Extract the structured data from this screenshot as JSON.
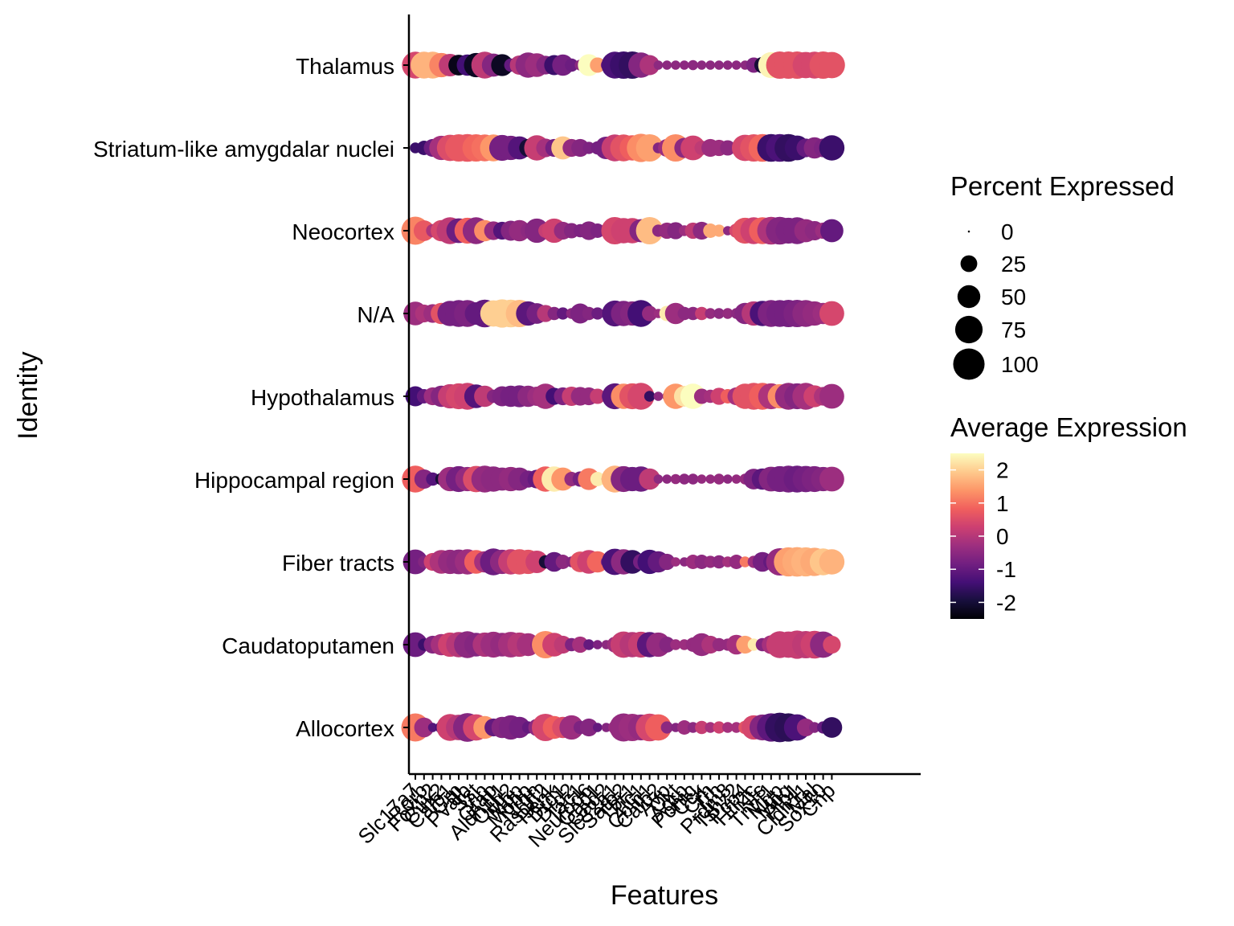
{
  "chart_data": {
    "type": "dotplot",
    "xlabel": "Features",
    "ylabel": "Identity",
    "identities": [
      "Allocortex",
      "Caudatoputamen",
      "Fiber tracts",
      "Hippocampal region",
      "Hypothalamus",
      "N/A",
      "Neocortex",
      "Striatum-like amygdalar nuclei",
      "Thalamus"
    ],
    "features_labeled": [
      "Slc17a7",
      "Rorb",
      "Foxp2",
      "Cux2",
      "Calb1",
      "Grp",
      "Pvalb",
      "Sst",
      "Vip",
      "Gfap",
      "Aldh1l1",
      "Olig2",
      "Mbp",
      "Mobp",
      "Nrgn",
      "Rasgrf2",
      "Penk",
      "Drd1",
      "Drd2",
      "Tac1",
      "Neurod6",
      "Gad1",
      "Gad2",
      "Slc32a1",
      "Satb2",
      "Tbr1",
      "Zic1",
      "Cbln1",
      "Calb2",
      "Avp",
      "Oxt",
      "Agrp",
      "Pomc",
      "Cck",
      "Crh",
      "Trh",
      "Prdm8",
      "Tshz2",
      "Pcp4",
      "Htr2c",
      "Nts",
      "Tnnt1",
      "Mgp",
      "Mog",
      "Plp1",
      "Cldn11",
      "Mal",
      "Sox10",
      "Cnp"
    ],
    "n_features": 49,
    "dots": {
      "Allocortex": {
        "pct": [
          55,
          25,
          4,
          8,
          50,
          45,
          58,
          48,
          35,
          20,
          30,
          40,
          30,
          8,
          18,
          52,
          35,
          30,
          40,
          10,
          20,
          4,
          4,
          10,
          55,
          52,
          46,
          54,
          48,
          8,
          4,
          12,
          6,
          10,
          6,
          8,
          6,
          6,
          10,
          40,
          46,
          56,
          62,
          56,
          48,
          20,
          6,
          8,
          28
        ],
        "avg": [
          1.1,
          -0.3,
          -1.2,
          -1.4,
          0.3,
          0.0,
          -0.6,
          0.4,
          1.4,
          -1.0,
          -0.6,
          -0.7,
          -0.8,
          -1.0,
          -0.5,
          0.4,
          0.8,
          0.5,
          -0.3,
          -0.7,
          -0.6,
          -1.0,
          -0.6,
          -0.3,
          -0.4,
          -0.3,
          -0.4,
          0.4,
          0.8,
          -0.5,
          -0.6,
          -0.3,
          -0.5,
          0.2,
          -0.2,
          0.3,
          -0.2,
          -0.2,
          0.6,
          0.4,
          -0.6,
          -1.1,
          -1.6,
          -1.7,
          -1.3,
          -0.4,
          -0.6,
          -1.0,
          -1.6
        ]
      },
      "Caudatoputamen": {
        "pct": [
          42,
          8,
          20,
          30,
          40,
          44,
          50,
          38,
          40,
          46,
          38,
          45,
          40,
          35,
          10,
          52,
          38,
          20,
          10,
          16,
          6,
          4,
          4,
          15,
          48,
          44,
          46,
          44,
          40,
          15,
          6,
          6,
          12,
          35,
          20,
          10,
          8,
          25,
          20,
          8,
          10,
          22,
          50,
          48,
          56,
          52,
          54,
          48,
          20
        ],
        "avg": [
          -0.9,
          -1.5,
          -0.6,
          -0.2,
          0.3,
          0.0,
          -0.5,
          -0.6,
          -0.1,
          -0.3,
          -0.4,
          -0.2,
          0.0,
          -0.2,
          -0.4,
          1.3,
          0.3,
          0.1,
          -0.7,
          -0.2,
          -1.0,
          -0.7,
          -0.5,
          -0.3,
          0.2,
          0.0,
          0.2,
          -1.1,
          -0.4,
          -0.6,
          -0.3,
          -0.3,
          -0.4,
          -0.4,
          -0.1,
          -0.4,
          -0.4,
          -0.2,
          1.5,
          2.3,
          -0.6,
          -0.2,
          0.2,
          0.2,
          0.2,
          0.1,
          0.3,
          -0.5,
          0.4
        ]
      },
      "Fiber tracts": {
        "pct": [
          42,
          8,
          20,
          38,
          40,
          42,
          44,
          38,
          30,
          50,
          40,
          44,
          44,
          40,
          34,
          10,
          25,
          12,
          6,
          28,
          38,
          30,
          6,
          48,
          44,
          38,
          15,
          40,
          30,
          16,
          4,
          4,
          12,
          12,
          8,
          10,
          6,
          12,
          6,
          8,
          25,
          15,
          52,
          60,
          62,
          60,
          56,
          50,
          44
        ],
        "avg": [
          -0.8,
          -0.6,
          0.3,
          -0.1,
          -0.4,
          -0.5,
          -0.3,
          0.8,
          -0.2,
          -0.9,
          -0.5,
          0.2,
          0.6,
          0.6,
          0.3,
          -2.0,
          -1.0,
          -0.5,
          -0.6,
          0.6,
          0.3,
          0.9,
          -0.6,
          -1.3,
          -0.5,
          -1.6,
          -0.8,
          -1.4,
          -1.0,
          -0.6,
          -0.3,
          -0.5,
          -0.3,
          -0.5,
          -0.4,
          -0.5,
          -0.2,
          -0.4,
          1.1,
          -0.3,
          -0.8,
          -1.0,
          -0.4,
          1.5,
          1.6,
          1.7,
          1.6,
          1.9,
          1.7
        ]
      },
      "Hippocampal region": {
        "pct": [
          50,
          24,
          10,
          8,
          40,
          46,
          40,
          48,
          50,
          44,
          36,
          40,
          36,
          18,
          22,
          44,
          44,
          36,
          12,
          14,
          32,
          12,
          4,
          50,
          46,
          40,
          44,
          30,
          4,
          4,
          5,
          6,
          6,
          4,
          4,
          6,
          4,
          4,
          6,
          28,
          30,
          42,
          46,
          50,
          50,
          48,
          46,
          40,
          42
        ],
        "avg": [
          0.8,
          -0.6,
          -1.2,
          -2.0,
          -0.3,
          -0.8,
          -0.4,
          0.5,
          -0.4,
          -0.5,
          -0.5,
          -0.4,
          -0.6,
          -0.8,
          -1.0,
          0.8,
          2.3,
          1.4,
          -0.4,
          -0.8,
          1.1,
          2.3,
          0.0,
          1.7,
          -0.6,
          -0.9,
          -0.9,
          0.1,
          -0.5,
          -0.5,
          -0.4,
          -0.5,
          -0.5,
          -0.4,
          -0.4,
          -0.4,
          -0.5,
          -0.4,
          -0.4,
          -0.7,
          -1.1,
          -0.6,
          -0.8,
          -0.8,
          -0.9,
          -0.8,
          -0.7,
          -0.6,
          -0.3
        ]
      },
      "Hypothalamus": {
        "pct": [
          26,
          12,
          20,
          30,
          40,
          46,
          50,
          38,
          30,
          10,
          26,
          30,
          32,
          30,
          24,
          44,
          18,
          20,
          24,
          22,
          20,
          14,
          4,
          46,
          44,
          46,
          50,
          6,
          4,
          4,
          44,
          28,
          44,
          14,
          10,
          18,
          12,
          20,
          44,
          50,
          50,
          46,
          40,
          50,
          46,
          50,
          32,
          22,
          42
        ],
        "avg": [
          -1.4,
          -1.0,
          -0.3,
          -0.6,
          0.2,
          0.4,
          0.3,
          -1.2,
          0.1,
          -0.6,
          -0.7,
          -0.8,
          -0.8,
          -0.5,
          -0.3,
          -0.2,
          -1.4,
          -0.7,
          0.2,
          -0.4,
          -0.4,
          0.2,
          -0.3,
          -1.1,
          1.3,
          0.6,
          0.4,
          -1.6,
          -0.5,
          -0.6,
          1.4,
          2.2,
          2.5,
          -0.3,
          -0.2,
          0.3,
          0.8,
          -0.2,
          0.6,
          0.6,
          0.8,
          -0.1,
          1.3,
          -0.4,
          -0.6,
          -0.2,
          0.3,
          -0.1,
          -0.3
        ]
      },
      "N/A": {
        "pct": [
          38,
          20,
          22,
          30,
          44,
          50,
          50,
          34,
          54,
          48,
          56,
          54,
          52,
          40,
          28,
          18,
          10,
          8,
          6,
          26,
          10,
          8,
          6,
          46,
          44,
          40,
          50,
          14,
          4,
          14,
          30,
          10,
          10,
          10,
          6,
          6,
          6,
          6,
          30,
          40,
          44,
          50,
          50,
          52,
          52,
          50,
          40,
          30,
          42
        ],
        "avg": [
          -0.3,
          -0.1,
          -0.3,
          0.6,
          -0.8,
          -0.8,
          -0.7,
          -1.0,
          -1.0,
          2.0,
          2.0,
          2.0,
          1.8,
          -1.1,
          -0.8,
          0.0,
          -0.6,
          -1.0,
          -0.5,
          -0.7,
          -0.6,
          -0.9,
          -0.8,
          -1.2,
          -0.7,
          -0.6,
          -1.4,
          -0.4,
          -0.3,
          2.3,
          -0.3,
          -0.5,
          -0.5,
          0.2,
          -0.4,
          -0.5,
          -0.4,
          -0.5,
          -0.6,
          0.0,
          -1.3,
          -0.7,
          -0.8,
          -0.8,
          -0.7,
          -0.5,
          -0.4,
          -0.3,
          0.4
        ]
      },
      "Neocortex": {
        "pct": [
          55,
          28,
          10,
          30,
          50,
          42,
          46,
          50,
          30,
          22,
          20,
          26,
          30,
          14,
          40,
          12,
          40,
          20,
          14,
          10,
          22,
          12,
          6,
          52,
          44,
          44,
          36,
          52,
          8,
          16,
          18,
          6,
          16,
          20,
          12,
          8,
          4,
          12,
          46,
          50,
          50,
          54,
          54,
          46,
          50,
          36,
          24,
          16,
          36
        ],
        "avg": [
          1.2,
          0.7,
          -0.1,
          0.4,
          0.1,
          -0.9,
          0.8,
          -0.5,
          1.3,
          -0.4,
          -1.2,
          -0.6,
          -0.4,
          -0.5,
          -0.6,
          0.2,
          0.3,
          -0.4,
          -0.6,
          -0.7,
          -0.6,
          -0.7,
          -0.7,
          0.4,
          0.3,
          0.3,
          -0.6,
          1.8,
          -0.5,
          -0.4,
          -0.6,
          -0.3,
          0.1,
          -0.5,
          1.6,
          1.6,
          -0.5,
          0.4,
          0.6,
          0.3,
          0.8,
          -0.1,
          -0.6,
          -0.7,
          -0.7,
          -0.4,
          -0.5,
          -0.3,
          -1.0
        ]
      },
      "Striatum-like amygdalar nuclei": {
        "pct": [
          6,
          12,
          20,
          40,
          48,
          52,
          54,
          52,
          50,
          50,
          46,
          40,
          36,
          20,
          44,
          22,
          20,
          36,
          20,
          20,
          8,
          10,
          34,
          50,
          50,
          44,
          56,
          52,
          6,
          20,
          52,
          26,
          42,
          12,
          20,
          16,
          14,
          10,
          48,
          52,
          54,
          54,
          54,
          54,
          42,
          22,
          30,
          22,
          44
        ],
        "avg": [
          -1.5,
          -1.5,
          -0.9,
          -0.2,
          0.5,
          0.7,
          0.7,
          0.9,
          1.0,
          1.4,
          -0.8,
          -0.8,
          -1.2,
          -2.0,
          0.2,
          -0.2,
          -0.8,
          1.9,
          -0.4,
          -0.6,
          -0.7,
          -0.8,
          -0.8,
          0.2,
          0.6,
          0.8,
          1.3,
          1.5,
          -0.6,
          -0.3,
          1.3,
          -0.5,
          0.3,
          0.1,
          -0.3,
          -0.3,
          -0.5,
          -0.5,
          0.4,
          0.6,
          0.9,
          -1.5,
          -1.3,
          -1.6,
          -1.5,
          -1.0,
          -0.6,
          -0.7,
          -1.5
        ]
      },
      "Thalamus": {
        "pct": [
          50,
          50,
          50,
          40,
          34,
          28,
          30,
          40,
          50,
          36,
          32,
          10,
          24,
          44,
          38,
          22,
          26,
          30,
          10,
          6,
          32,
          14,
          6,
          50,
          52,
          52,
          44,
          26,
          4,
          4,
          4,
          4,
          5,
          4,
          4,
          4,
          4,
          4,
          4,
          14,
          16,
          46,
          52,
          52,
          52,
          48,
          50,
          52,
          48
        ],
        "avg": [
          0.4,
          1.7,
          1.7,
          1.2,
          0.1,
          -2.3,
          -1.4,
          -2.2,
          0.1,
          -0.6,
          -2.2,
          -1.0,
          0.0,
          -0.5,
          -0.3,
          -0.6,
          -1.5,
          -0.8,
          -0.9,
          -0.5,
          2.5,
          1.5,
          -0.5,
          -1.3,
          -1.5,
          -1.6,
          -0.6,
          -0.1,
          -0.5,
          -0.5,
          -0.5,
          -0.5,
          -0.5,
          -0.5,
          -0.5,
          -0.5,
          -0.5,
          -0.5,
          -0.5,
          -0.7,
          -2.0,
          2.4,
          0.6,
          0.6,
          0.6,
          0.4,
          0.4,
          0.6,
          0.6
        ]
      }
    },
    "size_legend": {
      "title": "Percent Expressed",
      "entries": [
        {
          "label": "0",
          "value": 0
        },
        {
          "label": "25",
          "value": 25
        },
        {
          "label": "50",
          "value": 50
        },
        {
          "label": "75",
          "value": 75
        },
        {
          "label": "100",
          "value": 100
        }
      ]
    },
    "color_legend": {
      "title": "Average Expression",
      "ticks": [
        {
          "label": "2",
          "value": 2
        },
        {
          "label": "1",
          "value": 1
        },
        {
          "label": "0",
          "value": 0
        },
        {
          "label": "-1",
          "value": -1
        },
        {
          "label": "-2",
          "value": -2
        }
      ],
      "range": [
        -2.5,
        2.5
      ],
      "palette": [
        "#000004",
        "#180f3d",
        "#440f76",
        "#721f81",
        "#9e2f7f",
        "#cd4071",
        "#f1605d",
        "#fd9668",
        "#feca8d",
        "#fcfdbf"
      ]
    },
    "legend_position": "right"
  }
}
